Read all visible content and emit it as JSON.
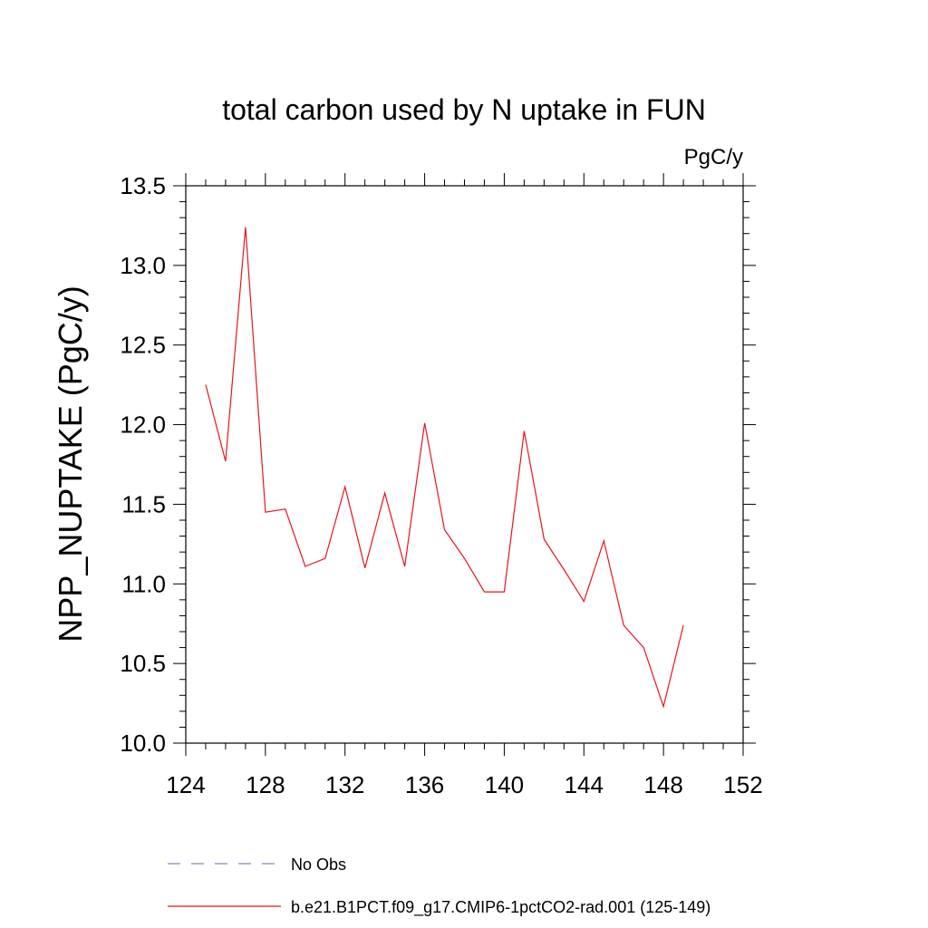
{
  "chart_data": {
    "type": "line",
    "title": "total carbon used by N uptake in FUN",
    "units_label": "PgC/y",
    "ylabel": "NPP_NUPTAKE  (PgC/y)",
    "xlabel": "",
    "xlim": [
      124,
      152
    ],
    "ylim": [
      10.0,
      13.5
    ],
    "x_ticks": [
      "124",
      "128",
      "132",
      "136",
      "140",
      "144",
      "148",
      "152"
    ],
    "y_ticks": [
      "10.0",
      "10.5",
      "11.0",
      "11.5",
      "12.0",
      "12.5",
      "13.0",
      "13.5"
    ],
    "grid": false,
    "legend_position": "bottom",
    "series": [
      {
        "name": "No Obs",
        "color": "#8a80c8",
        "style": "dashed",
        "x": [],
        "y": []
      },
      {
        "name": "b.e21.B1PCT.f09_g17.CMIP6-1pctCO2-rad.001 (125-149)",
        "color": "#e8141c",
        "style": "solid",
        "x": [
          125,
          126,
          127,
          128,
          129,
          130,
          131,
          132,
          133,
          134,
          135,
          136,
          137,
          138,
          139,
          140,
          141,
          142,
          143,
          144,
          145,
          146,
          147,
          148,
          149
        ],
        "y": [
          12.25,
          11.77,
          13.24,
          11.45,
          11.47,
          11.11,
          11.16,
          11.61,
          11.1,
          11.57,
          11.11,
          12.01,
          11.34,
          11.16,
          10.95,
          10.95,
          11.96,
          11.28,
          11.09,
          10.89,
          11.27,
          10.74,
          10.6,
          10.23,
          10.74
        ]
      }
    ]
  }
}
